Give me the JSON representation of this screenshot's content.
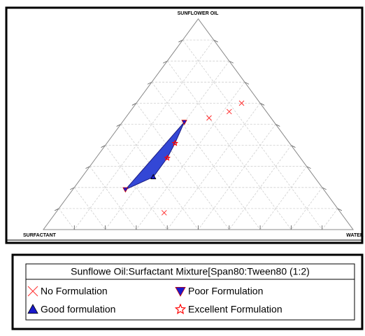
{
  "chart_data": {
    "type": "ternary",
    "vertex_labels": {
      "top": "SUNFLOWER OIL",
      "left": "SURFACTANT",
      "right": "WATER"
    },
    "ticks": [
      10,
      20,
      30,
      40,
      50,
      60,
      70,
      80,
      90
    ],
    "grid": true,
    "legend_title": "Sunflowe Oil:Surfactant Mixture[Span80:Tween80 (1:2)",
    "series": [
      {
        "name": "No Formulation",
        "color": "#ff3030",
        "marker": "x",
        "oil": [
          60,
          56,
          53,
          8
        ],
        "surfactant": [
          6,
          12,
          20,
          57
        ],
        "water": [
          34,
          32,
          27,
          35
        ]
      },
      {
        "name": "Poor Formulation",
        "color": "#1a1acc",
        "marker": "triangle-down",
        "oil": [
          51,
          19
        ],
        "surfactant": [
          29,
          64
        ],
        "water": [
          20,
          17
        ]
      },
      {
        "name": "Good formulation",
        "color": "#1a1acc",
        "marker": "triangle-up",
        "oil": [
          25
        ],
        "surfactant": [
          52
        ],
        "water": [
          23
        ]
      },
      {
        "name": "Excellent Formulation",
        "color": "#ff0000",
        "marker": "star",
        "oil": [
          41,
          34
        ],
        "surfactant": [
          37,
          43
        ],
        "water": [
          22,
          23
        ]
      }
    ],
    "region": {
      "color": "#3347d6",
      "oil": [
        51,
        41,
        34,
        25,
        19
      ],
      "surfactant": [
        29,
        37,
        43,
        52,
        64
      ],
      "water": [
        20,
        22,
        23,
        23,
        17
      ]
    }
  }
}
